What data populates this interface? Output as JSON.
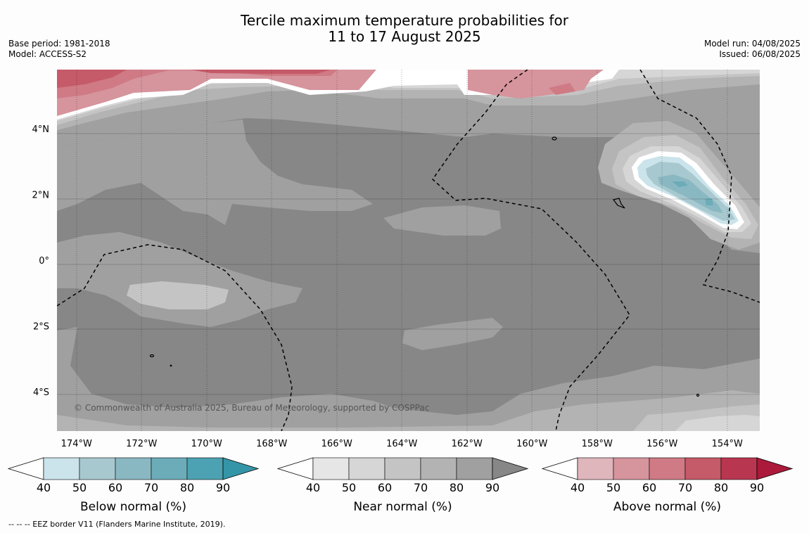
{
  "title": "Tercile maximum temperature probabilities for\n11 to 17 August 2025",
  "meta_left": {
    "base_period": "Base period: 1981-2018",
    "model": "Model: ACCESS-S2"
  },
  "meta_right": {
    "model_run": "Model run: 04/08/2025",
    "issued": "Issued: 06/08/2025"
  },
  "map": {
    "lon_range": [
      -174.6,
      -153.0
    ],
    "lat_range": [
      -5.2,
      5.8
    ],
    "x_ticks": [
      {
        "value": -174,
        "label": "174°W"
      },
      {
        "value": -172,
        "label": "172°W"
      },
      {
        "value": -170,
        "label": "170°W"
      },
      {
        "value": -168,
        "label": "168°W"
      },
      {
        "value": -166,
        "label": "166°W"
      },
      {
        "value": -164,
        "label": "164°W"
      },
      {
        "value": -162,
        "label": "162°W"
      },
      {
        "value": -160,
        "label": "160°W"
      },
      {
        "value": -158,
        "label": "158°W"
      },
      {
        "value": -156,
        "label": "156°W"
      },
      {
        "value": -154,
        "label": "154°W"
      }
    ],
    "y_ticks": [
      {
        "value": 4,
        "label": "4°N"
      },
      {
        "value": 2,
        "label": "2°N"
      },
      {
        "value": 0,
        "label": "0°"
      },
      {
        "value": -2,
        "label": "2°S"
      },
      {
        "value": -4,
        "label": "4°S"
      }
    ],
    "copyright": "© Commonwealth of Australia 2025, Bureau of Meteorology, supported by COSPPac"
  },
  "colorbars": [
    {
      "label": "Below normal (%)",
      "ticks": [
        "40",
        "50",
        "60",
        "70",
        "80",
        "90"
      ],
      "colors": [
        "#cbe3ea",
        "#a8c8cf",
        "#8ab8c2",
        "#6cacb8",
        "#4ca2b2",
        "#3595a8"
      ]
    },
    {
      "label": "Near normal (%)",
      "ticks": [
        "40",
        "50",
        "60",
        "70",
        "80",
        "90"
      ],
      "colors": [
        "#e6e6e6",
        "#d6d6d6",
        "#c4c4c4",
        "#b3b3b3",
        "#a0a0a0",
        "#878787"
      ]
    },
    {
      "label": "Above normal (%)",
      "ticks": [
        "40",
        "50",
        "60",
        "70",
        "80",
        "90"
      ],
      "colors": [
        "#e0b6bd",
        "#d6949d",
        "#cf7a84",
        "#c55a68",
        "#b93650",
        "#ab1a3a"
      ]
    }
  ],
  "footnote": "--  --  -- EEZ border V11 (Flanders Marine Institute, 2019)."
}
